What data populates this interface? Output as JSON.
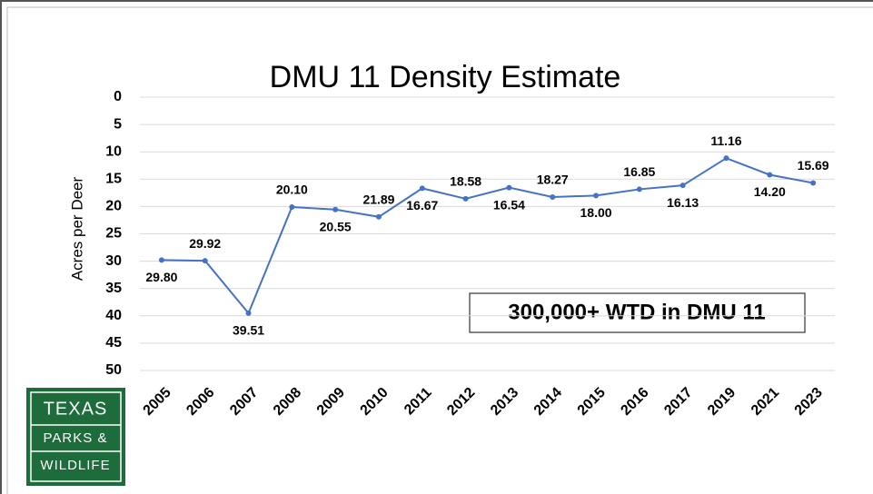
{
  "chart_data": {
    "type": "line",
    "title": "DMU 11 Density Estimate",
    "y_label": "Acres per Deer",
    "annotation": "300,000+ WTD in DMU 11",
    "categories": [
      "2005",
      "2006",
      "2007",
      "2008",
      "2009",
      "2010",
      "2011",
      "2012",
      "2013",
      "2014",
      "2015",
      "2016",
      "2017",
      "2019",
      "2021",
      "2023"
    ],
    "series": [
      {
        "name": "DMU 11",
        "color": "#4472c4",
        "values": [
          29.8,
          29.92,
          39.51,
          20.1,
          20.55,
          21.89,
          16.67,
          18.58,
          16.54,
          18.27,
          18.0,
          16.85,
          16.13,
          11.16,
          14.2,
          15.69
        ],
        "value_labels": [
          "29.80",
          "29.92",
          "39.51",
          "20.10",
          "20.55",
          "21.89",
          "16.67",
          "18.58",
          "16.54",
          "18.27",
          "18.00",
          "16.85",
          "16.13",
          "11.16",
          "14.20",
          "15.69"
        ]
      }
    ],
    "ylim": [
      0,
      50
    ],
    "yticks": [
      0,
      5,
      10,
      15,
      20,
      25,
      30,
      35,
      40,
      45,
      50
    ],
    "y_inverted": true,
    "grid": true
  },
  "logo": {
    "lines": [
      "TEXAS",
      "PARKS &",
      "WILDLIFE"
    ]
  }
}
